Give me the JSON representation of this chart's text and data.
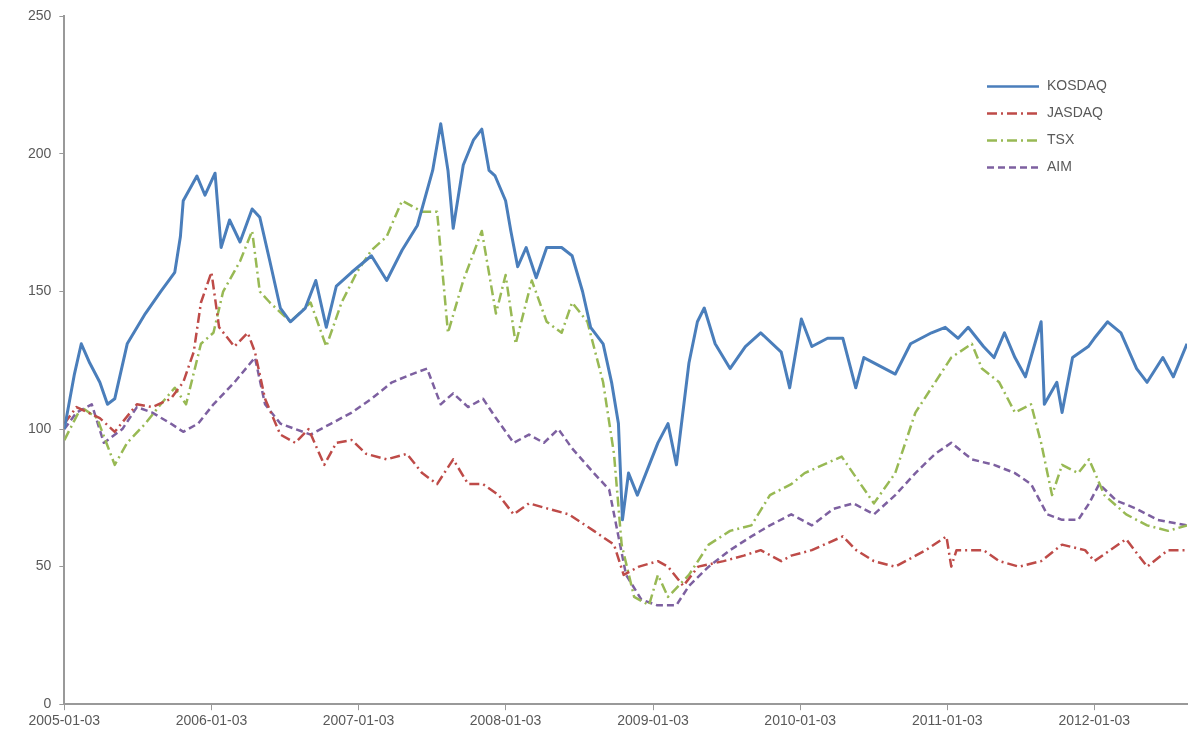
{
  "chart_data": {
    "type": "line",
    "xlim": [
      "2005-01-03",
      "2012-08-20"
    ],
    "xticks": [
      "2005-01-03",
      "2006-01-03",
      "2007-01-03",
      "2008-01-03",
      "2009-01-03",
      "2010-01-03",
      "2011-01-03",
      "2012-01-03"
    ],
    "ylim": [
      0,
      250
    ],
    "yticks": [
      0,
      50,
      100,
      150,
      200,
      250
    ],
    "grid": false,
    "legend": "top right",
    "marker": "none",
    "series": [
      {
        "name": "KOSDAQ",
        "color": "#4a7ebb",
        "line_style": "solid",
        "x": [
          "2005-01-03",
          "2005-01-28",
          "2005-02-14",
          "2005-03-07",
          "2005-04-01",
          "2005-04-20",
          "2005-05-08",
          "2005-06-08",
          "2005-07-23",
          "2005-08-30",
          "2005-10-04",
          "2005-10-18",
          "2005-10-25",
          "2005-11-28",
          "2005-12-18",
          "2006-01-12",
          "2006-01-27",
          "2006-02-17",
          "2006-03-15",
          "2006-04-14",
          "2006-05-03",
          "2006-05-28",
          "2006-06-23",
          "2006-07-18",
          "2006-08-24",
          "2006-09-19",
          "2006-10-15",
          "2006-11-09",
          "2006-12-17",
          "2007-02-04",
          "2007-03-14",
          "2007-04-21",
          "2007-05-29",
          "2007-07-06",
          "2007-07-26",
          "2007-08-13",
          "2007-08-26",
          "2007-09-20",
          "2007-10-15",
          "2007-11-05",
          "2007-11-23",
          "2007-12-08",
          "2008-01-03",
          "2008-01-16",
          "2008-02-02",
          "2008-02-23",
          "2008-03-19",
          "2008-04-14",
          "2008-05-21",
          "2008-06-16",
          "2008-07-12",
          "2008-08-01",
          "2008-09-01",
          "2008-09-22",
          "2008-10-09",
          "2008-10-19",
          "2008-11-03",
          "2008-11-25",
          "2009-01-15",
          "2009-02-09",
          "2009-03-02",
          "2009-04-02",
          "2009-04-23",
          "2009-05-10",
          "2009-06-06",
          "2009-07-13",
          "2009-08-20",
          "2009-09-27",
          "2009-11-17",
          "2009-12-08",
          "2010-01-06",
          "2010-02-01",
          "2010-03-12",
          "2010-04-19",
          "2010-05-21",
          "2010-06-10",
          "2010-08-01",
          "2010-08-27",
          "2010-10-04",
          "2010-11-25",
          "2010-12-29",
          "2011-01-30",
          "2011-02-24",
          "2011-04-03",
          "2011-04-29",
          "2011-05-25",
          "2011-06-20",
          "2011-07-16",
          "2011-08-24",
          "2011-09-01",
          "2011-10-02",
          "2011-10-15",
          "2011-11-10",
          "2011-12-19",
          "2012-01-03",
          "2012-02-05",
          "2012-03-09",
          "2012-04-17",
          "2012-05-13",
          "2012-06-21",
          "2012-07-17",
          "2012-08-20"
        ],
        "values": [
          100,
          120,
          131,
          124,
          117,
          109,
          111,
          131,
          142,
          150,
          157,
          170,
          183,
          192,
          185,
          193,
          166,
          176,
          168,
          180,
          177,
          161,
          144,
          139,
          144,
          154,
          137,
          152,
          157,
          163,
          154,
          165,
          174,
          194,
          211,
          194,
          173,
          196,
          205,
          209,
          194,
          192,
          183,
          172,
          159,
          166,
          155,
          166,
          166,
          163,
          150,
          137,
          131,
          117,
          102,
          67,
          84,
          76,
          95,
          102,
          87,
          124,
          139,
          144,
          131,
          122,
          130,
          135,
          128,
          115,
          140,
          130,
          133,
          133,
          115,
          126,
          122,
          120,
          131,
          135,
          137,
          133,
          137,
          130,
          126,
          135,
          126,
          119,
          139,
          109,
          117,
          106,
          126,
          130,
          133,
          139,
          135,
          122,
          117,
          126,
          119,
          131
        ]
      },
      {
        "name": "JASDAQ",
        "color": "#be4b48",
        "line_style": "dashdot",
        "x": [
          "2005-01-03",
          "2005-02-02",
          "2005-04-01",
          "2005-05-08",
          "2005-07-02",
          "2005-08-09",
          "2005-09-24",
          "2005-10-25",
          "2005-11-20",
          "2005-12-08",
          "2006-01-03",
          "2006-01-22",
          "2006-03-01",
          "2006-04-03",
          "2006-04-21",
          "2006-05-16",
          "2006-06-23",
          "2006-07-30",
          "2006-09-01",
          "2006-10-10",
          "2006-11-09",
          "2006-12-17",
          "2007-01-22",
          "2007-03-14",
          "2007-05-03",
          "2007-06-10",
          "2007-07-17",
          "2007-08-26",
          "2007-10-02",
          "2007-11-08",
          "2007-12-17",
          "2008-01-23",
          "2008-03-01",
          "2008-04-19",
          "2008-06-08",
          "2008-08-09",
          "2008-09-28",
          "2008-10-22",
          "2008-11-29",
          "2009-01-15",
          "2009-02-09",
          "2009-03-19",
          "2009-04-25",
          "2009-06-27",
          "2009-08-16",
          "2009-09-27",
          "2009-11-17",
          "2009-12-12",
          "2010-02-01",
          "2010-04-19",
          "2010-05-22",
          "2010-07-05",
          "2010-08-27",
          "2010-11-11",
          "2011-01-01",
          "2011-01-13",
          "2011-01-26",
          "2011-04-03",
          "2011-05-12",
          "2011-06-30",
          "2011-08-24",
          "2011-10-15",
          "2011-12-11",
          "2012-01-03",
          "2012-03-22",
          "2012-05-13",
          "2012-07-04",
          "2012-08-20"
        ],
        "values": [
          102,
          108,
          104,
          99,
          109,
          108,
          111,
          117,
          128,
          146,
          157,
          137,
          130,
          135,
          128,
          111,
          98,
          95,
          100,
          87,
          95,
          96,
          91,
          89,
          91,
          84,
          80,
          89,
          80,
          80,
          76,
          69,
          73,
          71,
          69,
          63,
          58,
          47,
          50,
          52,
          50,
          43,
          50,
          52,
          54,
          56,
          52,
          54,
          56,
          61,
          56,
          52,
          50,
          56,
          61,
          50,
          56,
          56,
          52,
          50,
          52,
          58,
          56,
          52,
          60,
          50,
          56,
          56
        ]
      },
      {
        "name": "TSX",
        "color": "#98b954",
        "line_style": "dashdot",
        "x": [
          "2005-01-03",
          "2005-02-14",
          "2005-03-25",
          "2005-05-08",
          "2005-06-08",
          "2005-07-23",
          "2005-08-30",
          "2005-10-04",
          "2005-11-01",
          "2005-12-08",
          "2006-01-08",
          "2006-02-01",
          "2006-03-15",
          "2006-04-14",
          "2006-05-03",
          "2006-05-28",
          "2006-07-18",
          "2006-09-06",
          "2006-10-15",
          "2006-11-22",
          "2006-12-30",
          "2007-02-04",
          "2007-03-14",
          "2007-04-21",
          "2007-06-10",
          "2007-07-17",
          "2007-08-13",
          "2007-09-20",
          "2007-11-05",
          "2007-12-10",
          "2008-01-03",
          "2008-01-28",
          "2008-03-08",
          "2008-04-14",
          "2008-05-21",
          "2008-06-16",
          "2008-07-24",
          "2008-09-01",
          "2008-09-28",
          "2008-10-17",
          "2008-11-17",
          "2008-12-24",
          "2009-01-15",
          "2009-02-09",
          "2009-04-02",
          "2009-05-21",
          "2009-07-13",
          "2009-09-04",
          "2009-10-20",
          "2009-12-12",
          "2010-01-14",
          "2010-04-16",
          "2010-07-05",
          "2010-08-27",
          "2010-10-16",
          "2010-11-25",
          "2011-01-13",
          "2011-03-05",
          "2011-03-30",
          "2011-05-12",
          "2011-06-20",
          "2011-07-30",
          "2011-08-24",
          "2011-09-20",
          "2011-10-15",
          "2011-11-24",
          "2011-12-21",
          "2012-01-28",
          "2012-03-22",
          "2012-05-13",
          "2012-07-04",
          "2012-08-20"
        ],
        "values": [
          96,
          108,
          104,
          87,
          95,
          102,
          109,
          115,
          109,
          131,
          135,
          150,
          161,
          172,
          150,
          146,
          139,
          146,
          130,
          146,
          157,
          165,
          170,
          183,
          179,
          179,
          135,
          154,
          172,
          142,
          156,
          131,
          154,
          139,
          135,
          146,
          139,
          117,
          91,
          58,
          39,
          36,
          47,
          39,
          47,
          58,
          63,
          65,
          76,
          80,
          84,
          90,
          73,
          84,
          106,
          115,
          126,
          131,
          122,
          117,
          106,
          109,
          95,
          76,
          87,
          84,
          89,
          76,
          69,
          65,
          63,
          65
        ]
      },
      {
        "name": "AIM",
        "color": "#7d60a0",
        "line_style": "dashed",
        "x": [
          "2005-01-03",
          "2005-02-02",
          "2005-03-12",
          "2005-04-11",
          "2005-05-27",
          "2005-07-02",
          "2005-08-09",
          "2005-09-24",
          "2005-10-25",
          "2005-12-01",
          "2006-01-08",
          "2006-03-01",
          "2006-04-21",
          "2006-05-16",
          "2006-06-23",
          "2006-07-30",
          "2006-09-06",
          "2006-10-27",
          "2006-12-17",
          "2007-02-04",
          "2007-03-27",
          "2007-05-16",
          "2007-06-22",
          "2007-07-26",
          "2007-08-26",
          "2007-10-02",
          "2007-11-08",
          "2007-12-10",
          "2008-01-23",
          "2008-03-01",
          "2008-04-07",
          "2008-05-13",
          "2008-06-16",
          "2008-08-09",
          "2008-09-16",
          "2008-10-09",
          "2008-10-28",
          "2008-12-05",
          "2009-01-12",
          "2009-03-02",
          "2009-04-02",
          "2009-05-21",
          "2009-07-13",
          "2009-09-04",
          "2009-10-20",
          "2009-12-12",
          "2010-02-01",
          "2010-03-26",
          "2010-05-15",
          "2010-07-05",
          "2010-08-27",
          "2010-10-16",
          "2010-12-04",
          "2011-01-13",
          "2011-03-05",
          "2011-04-29",
          "2011-06-20",
          "2011-07-30",
          "2011-09-08",
          "2011-10-15",
          "2011-11-24",
          "2011-12-21",
          "2012-01-15",
          "2012-02-27",
          "2012-04-17",
          "2012-06-08",
          "2012-08-20"
        ],
        "values": [
          100,
          106,
          109,
          95,
          100,
          108,
          106,
          102,
          99,
          102,
          109,
          117,
          126,
          109,
          102,
          100,
          98,
          102,
          106,
          111,
          117,
          120,
          122,
          109,
          113,
          108,
          111,
          104,
          95,
          98,
          95,
          100,
          93,
          84,
          78,
          61,
          47,
          38,
          36,
          36,
          43,
          50,
          56,
          61,
          65,
          69,
          65,
          71,
          73,
          69,
          76,
          84,
          91,
          95,
          89,
          87,
          84,
          80,
          69,
          67,
          67,
          73,
          80,
          74,
          71,
          67,
          65
        ]
      }
    ]
  }
}
